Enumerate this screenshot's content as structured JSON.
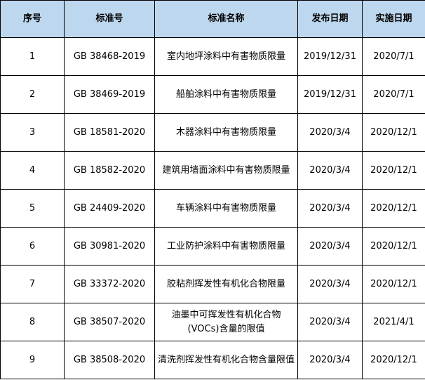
{
  "header_bg": "#BDD7EE",
  "headers": [
    "序号",
    "标准号",
    "标准名称",
    "发布日期",
    "实施日期"
  ],
  "rows": [
    {
      "no": "1",
      "code": "GB 38468-2019",
      "name": "室内地坪涂料中有害物质限量",
      "publish": "2019/12/31",
      "effective": "2020/7/1"
    },
    {
      "no": "2",
      "code": "GB 38469-2019",
      "name": "船舶涂料中有害物质限量",
      "publish": "2019/12/31",
      "effective": "2020/7/1"
    },
    {
      "no": "3",
      "code": "GB 18581-2020",
      "name": "木器涂料中有害物质限量",
      "publish": "2020/3/4",
      "effective": "2020/12/1"
    },
    {
      "no": "4",
      "code": "GB 18582-2020",
      "name": "建筑用墙面涂料中有害物质限量",
      "publish": "2020/3/4",
      "effective": "2020/12/1"
    },
    {
      "no": "5",
      "code": "GB 24409-2020",
      "name": "车辆涂料中有害物质限量",
      "publish": "2020/3/4",
      "effective": "2020/12/1"
    },
    {
      "no": "6",
      "code": "GB 30981-2020",
      "name": "工业防护涂料中有害物质限量",
      "publish": "2020/3/4",
      "effective": "2020/12/1"
    },
    {
      "no": "7",
      "code": "GB 33372-2020",
      "name": "胶粘剂挥发性有机化合物限量",
      "publish": "2020/3/4",
      "effective": "2020/12/1"
    },
    {
      "no": "8",
      "code": "GB 38507-2020",
      "name": "油墨中可挥发性有机化合物(VOCs)含量的限值",
      "publish": "2020/3/4",
      "effective": "2021/4/1"
    },
    {
      "no": "9",
      "code": "GB 38508-2020",
      "name": "清洗剂挥发性有机化合物含量限值",
      "publish": "2020/3/4",
      "effective": "2020/12/1"
    }
  ]
}
